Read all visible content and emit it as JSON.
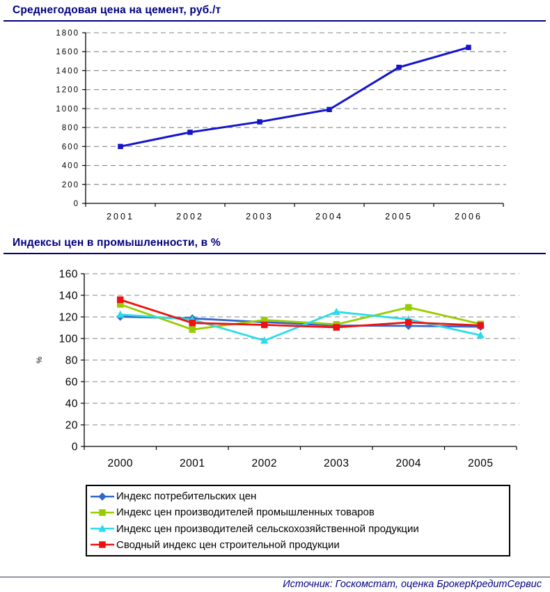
{
  "page": {
    "background": "#ffffff",
    "accent_navy": "#000080",
    "grid_color": "#84848f",
    "axis_color": "#000000"
  },
  "chart_data": [
    {
      "type": "line",
      "title": "Среднегодовая цена на цемент, руб./т",
      "categories": [
        "2001",
        "2002",
        "2003",
        "2004",
        "2005",
        "2006"
      ],
      "series": [
        {
          "name": "Среднегодовая цена на цемент",
          "color": "#1414cc",
          "marker": "square",
          "values": [
            600,
            750,
            860,
            990,
            1435,
            1645
          ]
        }
      ],
      "xlabel": "",
      "ylabel": "",
      "ylim": [
        0,
        1800
      ],
      "ytick_step": 200,
      "grid": "horizontal-dashed",
      "legend_position": "none"
    },
    {
      "type": "line",
      "title": "Индексы цен в промышленности, в %",
      "categories": [
        "2000",
        "2001",
        "2002",
        "2003",
        "2004",
        "2005"
      ],
      "series": [
        {
          "name": "Индекс потребительских цен",
          "color": "#3366cc",
          "marker": "diamond",
          "values": [
            120.2,
            118.6,
            115.1,
            112.0,
            111.7,
            110.9
          ]
        },
        {
          "name": "Индекс цен производителей промышленных товаров",
          "color": "#99cc00",
          "marker": "square",
          "values": [
            131.6,
            108.3,
            117.1,
            113.1,
            128.8,
            113.4
          ]
        },
        {
          "name": "Индекс цен производителей сельскохозяйственной продукции",
          "color": "#29dce8",
          "marker": "triangle",
          "values": [
            122.2,
            117.5,
            98.1,
            124.7,
            117.7,
            103.0
          ]
        },
        {
          "name": "Сводный индекс цен строительной продукции",
          "color": "#ee1111",
          "marker": "square",
          "values": [
            135.9,
            114.4,
            112.6,
            110.3,
            114.9,
            112.1
          ]
        }
      ],
      "xlabel": "",
      "ylabel": "%",
      "ylim": [
        0,
        160
      ],
      "ytick_step": 20,
      "grid": "horizontal-dashed",
      "legend_position": "bottom"
    }
  ],
  "footer": {
    "source": "Источник: Госкомстат, оценка БрокерКредитСервис"
  }
}
